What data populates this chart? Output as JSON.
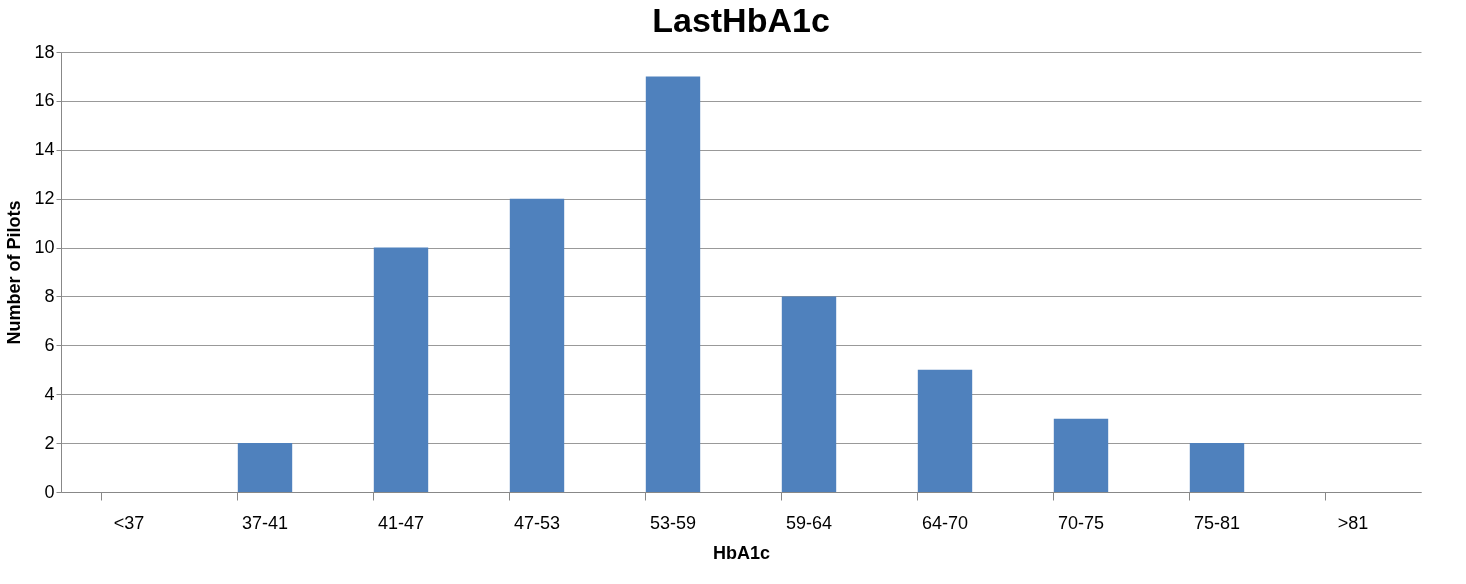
{
  "chart_data": {
    "type": "bar",
    "title": "LastHbA1c",
    "xlabel": "HbA1c",
    "ylabel": "Number of Pilots",
    "categories": [
      "<37",
      "37-41",
      "41-47",
      "47-53",
      "53-59",
      "59-64",
      "64-70",
      "70-75",
      "75-81",
      ">81"
    ],
    "values": [
      0,
      2,
      10,
      12,
      17,
      8,
      5,
      3,
      2,
      0
    ],
    "color": "#4f81bd",
    "ylim": [
      0,
      18
    ],
    "yticks": [
      0,
      2,
      4,
      6,
      8,
      10,
      12,
      14,
      16,
      18
    ],
    "grid": "y"
  }
}
